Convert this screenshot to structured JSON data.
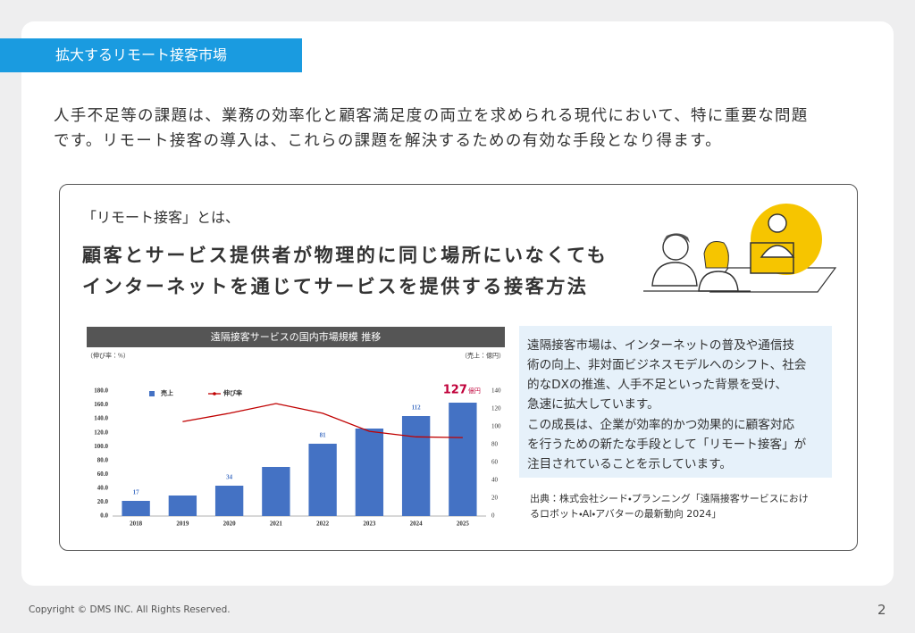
{
  "header": {
    "title": "拡大するリモート接客市場"
  },
  "intro": [
    "人手不足等の課題は、業務の効率化と顧客満足度の両立を求められる現代において、特に重要な問題",
    "です。リモート接客の導入は、これらの課題を解決するための有効な手段となり得ます。"
  ],
  "definition": {
    "lead": "「リモート接客」とは、",
    "headline": [
      "顧客とサービス提供者が物理的に同じ場所にいなくても",
      "インターネットを通じてサービスを提供する接客方法"
    ]
  },
  "chart_data": {
    "type": "bar",
    "title": "遠隔接客サービスの国内市場規模 推移",
    "y_label": "（伸び率：%）",
    "y2_label": "（売上：億円）",
    "categories": [
      "2018",
      "2019",
      "2020",
      "2021",
      "2022",
      "2023",
      "2024",
      "2025"
    ],
    "series": [
      {
        "name": "売上",
        "type": "bar",
        "axis": "y2",
        "color": "#4472c4",
        "values": [
          17,
          23,
          34,
          55,
          81,
          98,
          112,
          127
        ],
        "value_labels": [
          "17",
          null,
          "34",
          null,
          "81",
          null,
          "112",
          "127"
        ]
      },
      {
        "name": "伸び率",
        "type": "line",
        "axis": "y",
        "color": "#c00000",
        "values": [
          null,
          136,
          148,
          162,
          148,
          122,
          114,
          113
        ]
      }
    ],
    "highlight_unit": "億円",
    "ylim": [
      0,
      180
    ],
    "yticks": [
      {
        "value": 0,
        "label": "0.0"
      },
      {
        "value": 20,
        "label": "20.0"
      },
      {
        "value": 40,
        "label": "40.0"
      },
      {
        "value": 60,
        "label": "60.0"
      },
      {
        "value": 80,
        "label": "80.0"
      },
      {
        "value": 100,
        "label": "100.0"
      },
      {
        "value": 120,
        "label": "120.0"
      },
      {
        "value": 140,
        "label": "140.0"
      },
      {
        "value": 160,
        "label": "160.0"
      },
      {
        "value": 180,
        "label": "180.0"
      }
    ],
    "y2lim": [
      0,
      140
    ],
    "y2ticks": [
      0,
      20,
      40,
      60,
      80,
      100,
      120,
      140
    ],
    "legend": "top-left",
    "grid": false
  },
  "description": [
    [
      "遠隔接客市場は、インターネットの普及や通信技",
      "術の向上、非対面ビジネスモデルへのシフト、社会",
      "的なDXの推進、人手不足といった背景を受け、",
      "急速に拡大しています。"
    ],
    [
      "この成長は、企業が効率的かつ効果的に顧客対応",
      "を行うための新たな手段として「リモート接客」が",
      "注目されていることを示しています。"
    ]
  ],
  "source": [
    "出典：株式会社シード・プランニング「遠隔接客サービスにおけ",
    "るロボット・AI・アバターの最新動向 2024」"
  ],
  "footer": {
    "copyright": "Copyright © DMS INC.   All Rights Reserved.",
    "page": "2"
  }
}
